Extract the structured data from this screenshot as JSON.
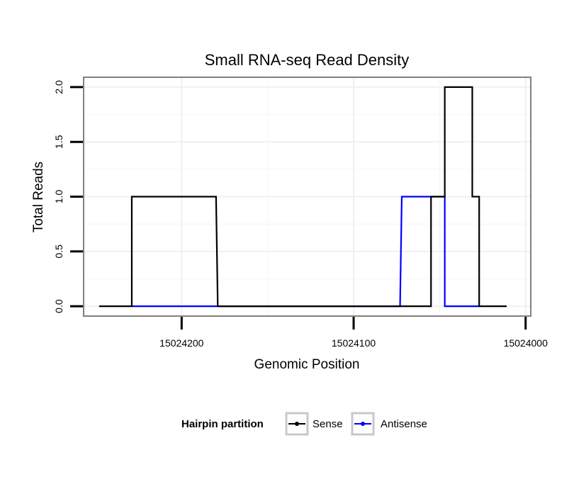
{
  "chart_data": {
    "type": "line",
    "title": "Small RNA-seq Read Density",
    "xlabel": "Genomic Position",
    "ylabel": "Total Reads",
    "x_reversed": true,
    "xlim": [
      15024257,
      15023997
    ],
    "ylim": [
      -0.09,
      2.09
    ],
    "x_ticks": [
      15024200,
      15024100,
      15024000
    ],
    "x_tick_labels": [
      "15024200",
      "15024100",
      "15024000"
    ],
    "y_ticks": [
      0,
      0.5,
      1,
      1.5,
      2
    ],
    "y_tick_labels": [
      "0.0",
      "0.5",
      "1.0",
      "1.5",
      "2.0"
    ],
    "grid": true,
    "legend": {
      "title": "Hairpin partition",
      "position": "bottom",
      "entries": [
        "Sense",
        "Antisense"
      ]
    },
    "series": [
      {
        "name": "Sense",
        "color": "#000000",
        "x": [
          15024248,
          15024229,
          15024229,
          15024180,
          15024179,
          15024055,
          15024055,
          15024047,
          15024047,
          15024031,
          15024031,
          15024027,
          15024027,
          15024011
        ],
        "y": [
          0,
          0,
          1,
          1,
          0,
          0,
          1,
          1,
          2,
          2,
          1,
          1,
          0,
          0
        ]
      },
      {
        "name": "Antisense",
        "color": "#0000ff",
        "x": [
          15024229,
          15024180,
          15024180,
          15024073,
          15024072,
          15024047,
          15024047,
          15024027
        ],
        "y": [
          0,
          0,
          0,
          0,
          1,
          1,
          0,
          0
        ]
      }
    ]
  }
}
